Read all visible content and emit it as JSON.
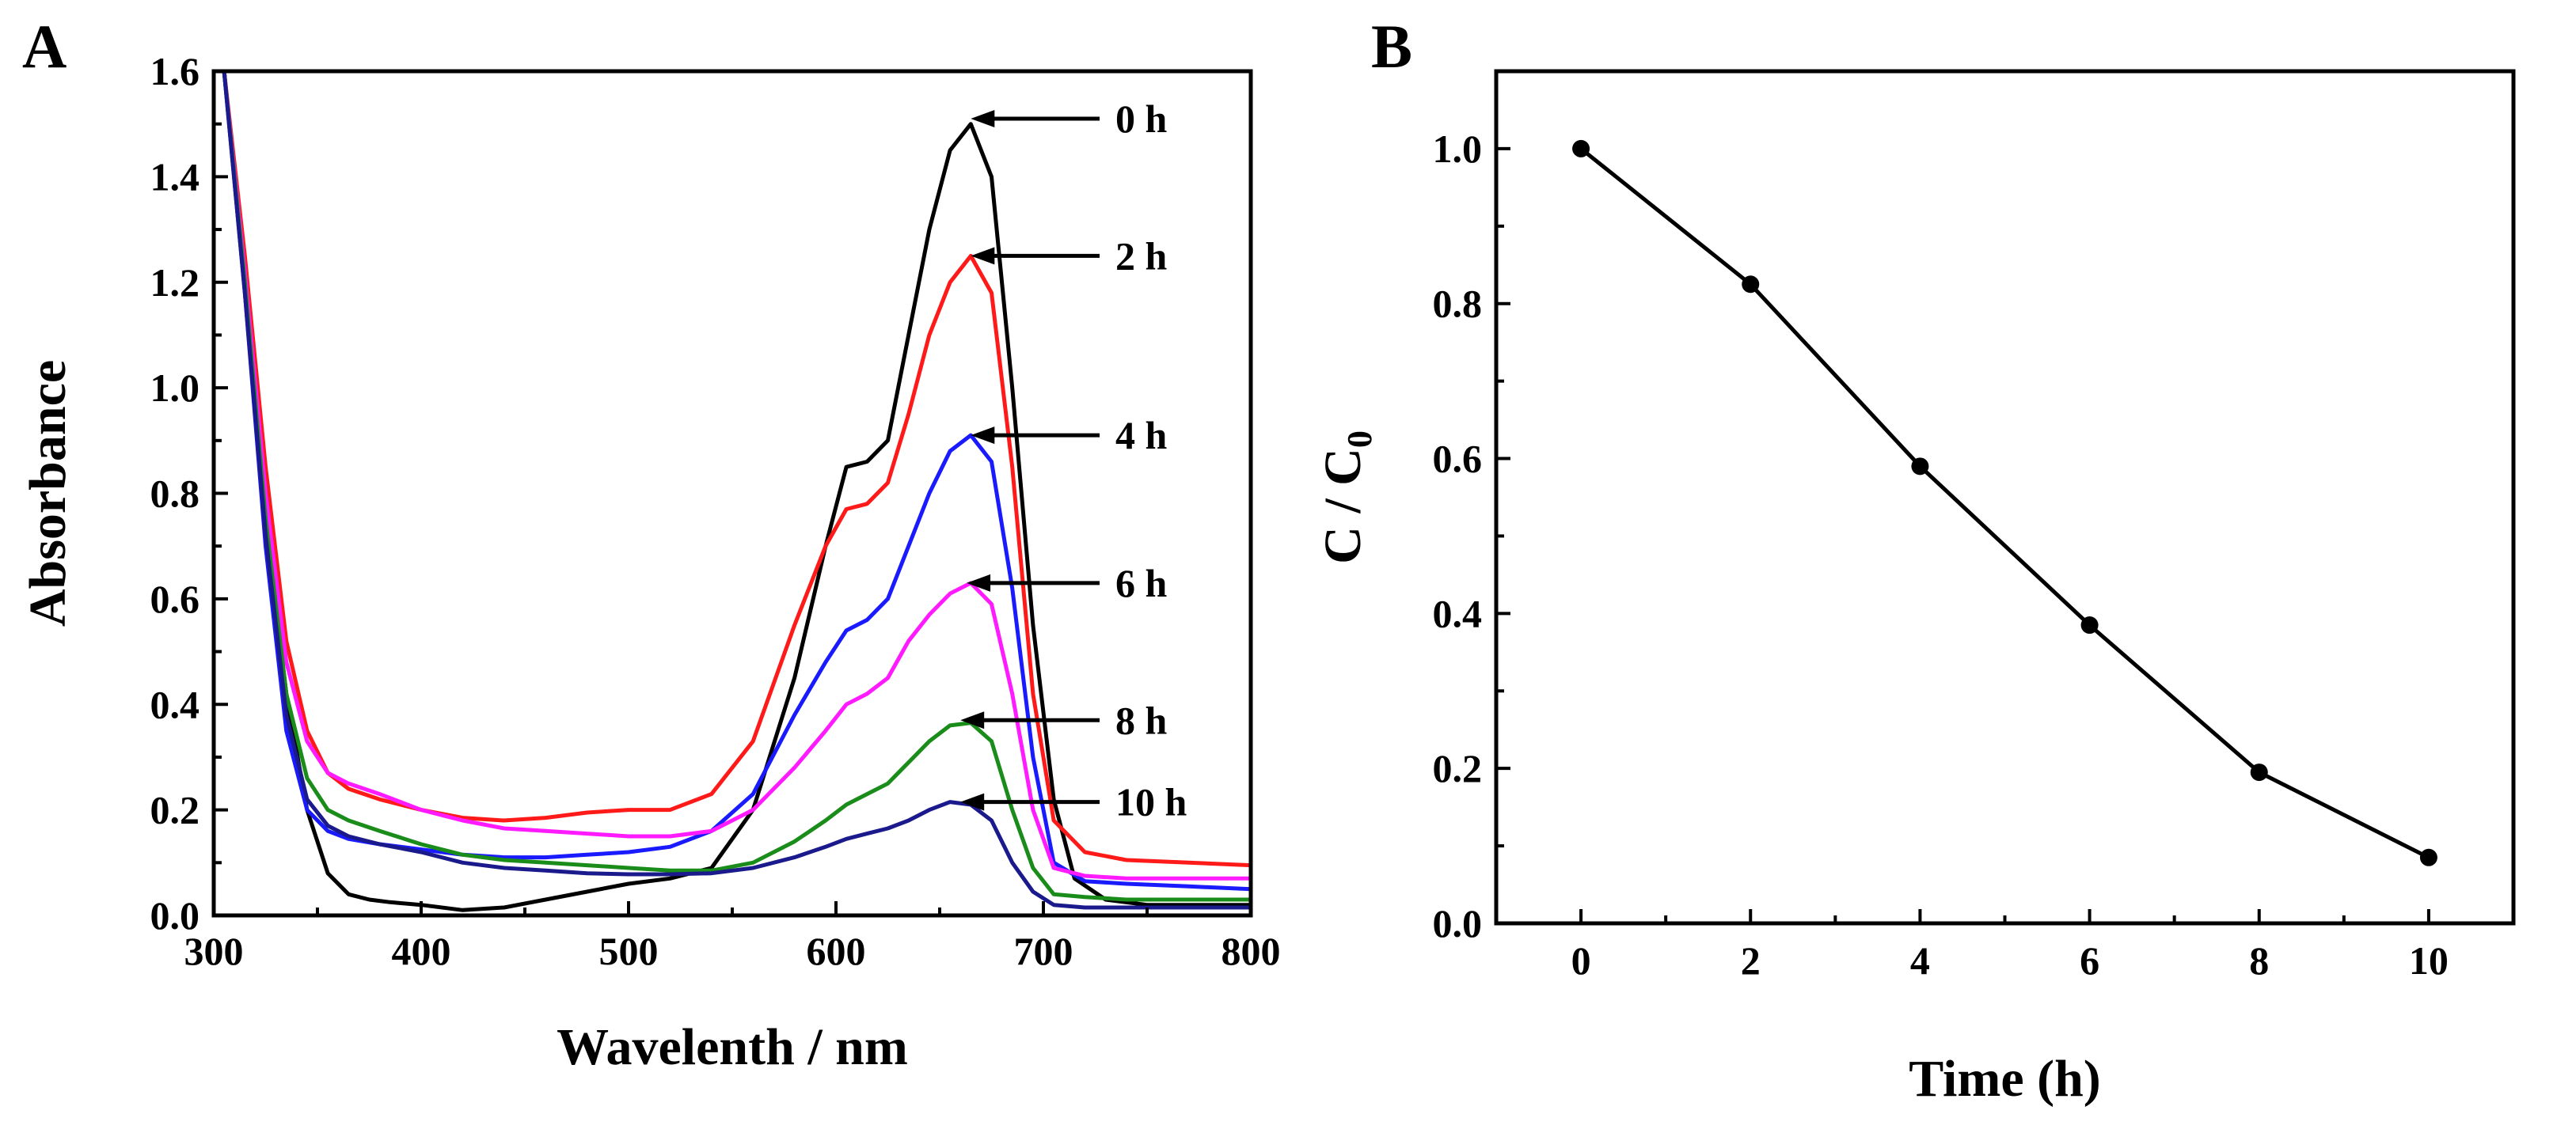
{
  "figure": {
    "panels": [
      "A",
      "B"
    ]
  },
  "chart_data": [
    {
      "panel": "A",
      "type": "line",
      "title": "",
      "xlabel": "Wavelenth / nm",
      "ylabel": "Absorbance",
      "xlim": [
        300,
        800
      ],
      "ylim": [
        0,
        1.6
      ],
      "xticks": [
        "300",
        "400",
        "500",
        "600",
        "700",
        "800"
      ],
      "yticks": [
        "0.0",
        "0.2",
        "0.4",
        "0.6",
        "0.8",
        "1.0",
        "1.2",
        "1.4",
        "1.6"
      ],
      "series": [
        {
          "name": "0 h",
          "color": "#000000",
          "x": [
            305,
            315,
            325,
            335,
            345,
            355,
            365,
            375,
            385,
            400,
            420,
            440,
            460,
            480,
            500,
            520,
            540,
            560,
            580,
            595,
            605,
            615,
            625,
            635,
            645,
            655,
            665,
            675,
            685,
            695,
            705,
            715,
            730,
            750,
            770,
            800
          ],
          "y": [
            1.6,
            1.2,
            0.75,
            0.42,
            0.2,
            0.08,
            0.04,
            0.03,
            0.025,
            0.02,
            0.01,
            0.015,
            0.03,
            0.045,
            0.06,
            0.07,
            0.09,
            0.2,
            0.45,
            0.7,
            0.85,
            0.86,
            0.9,
            1.1,
            1.3,
            1.45,
            1.5,
            1.4,
            1.0,
            0.55,
            0.22,
            0.07,
            0.03,
            0.02,
            0.02,
            0.02
          ]
        },
        {
          "name": "2 h",
          "color": "#ff1a1a",
          "x": [
            305,
            315,
            325,
            335,
            345,
            355,
            365,
            380,
            400,
            420,
            440,
            460,
            480,
            500,
            520,
            540,
            560,
            580,
            595,
            605,
            615,
            625,
            635,
            645,
            655,
            665,
            675,
            685,
            695,
            705,
            720,
            740,
            770,
            800
          ],
          "y": [
            1.6,
            1.25,
            0.85,
            0.52,
            0.35,
            0.27,
            0.24,
            0.22,
            0.2,
            0.185,
            0.18,
            0.185,
            0.195,
            0.2,
            0.2,
            0.23,
            0.33,
            0.55,
            0.7,
            0.77,
            0.78,
            0.82,
            0.95,
            1.1,
            1.2,
            1.25,
            1.18,
            0.85,
            0.42,
            0.18,
            0.12,
            0.105,
            0.1,
            0.095
          ]
        },
        {
          "name": "4 h",
          "color": "#1a1aff",
          "x": [
            305,
            315,
            325,
            335,
            345,
            355,
            365,
            380,
            400,
            420,
            440,
            460,
            480,
            500,
            520,
            540,
            560,
            580,
            595,
            605,
            615,
            625,
            635,
            645,
            655,
            665,
            675,
            685,
            695,
            705,
            720,
            740,
            770,
            800
          ],
          "y": [
            1.6,
            1.18,
            0.7,
            0.35,
            0.2,
            0.16,
            0.145,
            0.135,
            0.125,
            0.115,
            0.11,
            0.11,
            0.115,
            0.12,
            0.13,
            0.16,
            0.23,
            0.38,
            0.48,
            0.54,
            0.56,
            0.6,
            0.7,
            0.8,
            0.88,
            0.91,
            0.86,
            0.62,
            0.3,
            0.1,
            0.065,
            0.06,
            0.055,
            0.05
          ]
        },
        {
          "name": "6 h",
          "color": "#ff1aff",
          "x": [
            305,
            315,
            325,
            335,
            345,
            355,
            365,
            380,
            400,
            420,
            440,
            460,
            480,
            500,
            520,
            540,
            560,
            580,
            595,
            605,
            615,
            625,
            635,
            645,
            655,
            665,
            675,
            685,
            695,
            705,
            720,
            740,
            770,
            800
          ],
          "y": [
            1.6,
            1.22,
            0.8,
            0.48,
            0.33,
            0.27,
            0.25,
            0.23,
            0.2,
            0.18,
            0.165,
            0.16,
            0.155,
            0.15,
            0.15,
            0.16,
            0.2,
            0.28,
            0.35,
            0.4,
            0.42,
            0.45,
            0.52,
            0.57,
            0.61,
            0.63,
            0.59,
            0.42,
            0.2,
            0.09,
            0.075,
            0.07,
            0.07,
            0.07
          ]
        },
        {
          "name": "8 h",
          "color": "#1a8c1a",
          "x": [
            305,
            315,
            325,
            335,
            345,
            355,
            365,
            380,
            400,
            420,
            440,
            460,
            480,
            500,
            520,
            540,
            560,
            580,
            595,
            605,
            615,
            625,
            635,
            645,
            655,
            665,
            675,
            685,
            695,
            705,
            720,
            740,
            770,
            800
          ],
          "y": [
            1.6,
            1.2,
            0.75,
            0.42,
            0.26,
            0.2,
            0.18,
            0.16,
            0.135,
            0.115,
            0.105,
            0.1,
            0.095,
            0.09,
            0.085,
            0.085,
            0.1,
            0.14,
            0.18,
            0.21,
            0.23,
            0.25,
            0.29,
            0.33,
            0.36,
            0.365,
            0.33,
            0.2,
            0.09,
            0.04,
            0.035,
            0.03,
            0.03,
            0.03
          ]
        },
        {
          "name": "10 h",
          "color": "#1a1a8c",
          "x": [
            305,
            315,
            325,
            335,
            345,
            355,
            365,
            380,
            400,
            420,
            440,
            460,
            480,
            500,
            520,
            540,
            560,
            580,
            595,
            605,
            615,
            625,
            635,
            645,
            655,
            665,
            675,
            685,
            695,
            705,
            720,
            740,
            770,
            800
          ],
          "y": [
            1.6,
            1.18,
            0.72,
            0.38,
            0.22,
            0.17,
            0.15,
            0.135,
            0.12,
            0.1,
            0.09,
            0.085,
            0.08,
            0.078,
            0.078,
            0.08,
            0.09,
            0.11,
            0.13,
            0.145,
            0.155,
            0.165,
            0.18,
            0.2,
            0.215,
            0.21,
            0.18,
            0.1,
            0.045,
            0.02,
            0.015,
            0.015,
            0.015,
            0.015
          ]
        }
      ],
      "annotations": [
        {
          "text": "0 h",
          "x": 665,
          "y": 1.51
        },
        {
          "text": "2 h",
          "x": 665,
          "y": 1.25
        },
        {
          "text": "4 h",
          "x": 665,
          "y": 0.91
        },
        {
          "text": "6 h",
          "x": 663,
          "y": 0.63
        },
        {
          "text": "8 h",
          "x": 660,
          "y": 0.37
        },
        {
          "text": "10 h",
          "x": 660,
          "y": 0.215
        }
      ]
    },
    {
      "panel": "B",
      "type": "line",
      "title": "",
      "xlabel": "Time (h)",
      "ylabel": "C / C",
      "ylabel_subscript": "0",
      "xlim": [
        -1,
        11
      ],
      "ylim": [
        0,
        1.1
      ],
      "xticks": [
        "0",
        "2",
        "4",
        "6",
        "8",
        "10"
      ],
      "yticks": [
        "0.0",
        "0.2",
        "0.4",
        "0.6",
        "0.8",
        "1.0"
      ],
      "series": [
        {
          "name": "C/C0",
          "color": "#000000",
          "x": [
            0,
            2,
            4,
            6,
            8,
            10
          ],
          "y": [
            1.0,
            0.825,
            0.59,
            0.385,
            0.195,
            0.085
          ]
        }
      ]
    }
  ]
}
